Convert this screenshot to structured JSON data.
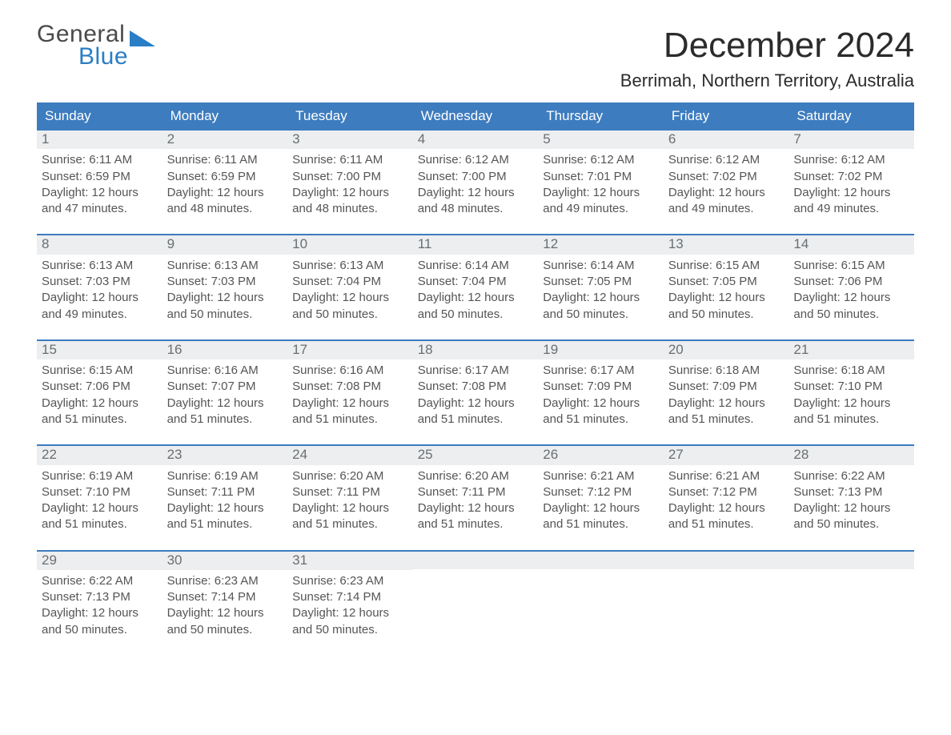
{
  "logo": {
    "line1": "General",
    "line2": "Blue"
  },
  "title": "December 2024",
  "subtitle": "Berrimah, Northern Territory, Australia",
  "colors": {
    "header_bg": "#3d7cbf",
    "header_text": "#ffffff",
    "daybar_bg": "#eceeef",
    "daybar_text": "#6a6f73",
    "rule": "#3d7cbf",
    "logo_dark": "#4a4a4a",
    "logo_blue": "#2a7ec5",
    "page_bg": "#ffffff",
    "text": "#333333"
  },
  "days_of_week": [
    "Sunday",
    "Monday",
    "Tuesday",
    "Wednesday",
    "Thursday",
    "Friday",
    "Saturday"
  ],
  "weeks": [
    [
      {
        "n": "1",
        "sunrise": "Sunrise: 6:11 AM",
        "sunset": "Sunset: 6:59 PM",
        "dl1": "Daylight: 12 hours",
        "dl2": "and 47 minutes."
      },
      {
        "n": "2",
        "sunrise": "Sunrise: 6:11 AM",
        "sunset": "Sunset: 6:59 PM",
        "dl1": "Daylight: 12 hours",
        "dl2": "and 48 minutes."
      },
      {
        "n": "3",
        "sunrise": "Sunrise: 6:11 AM",
        "sunset": "Sunset: 7:00 PM",
        "dl1": "Daylight: 12 hours",
        "dl2": "and 48 minutes."
      },
      {
        "n": "4",
        "sunrise": "Sunrise: 6:12 AM",
        "sunset": "Sunset: 7:00 PM",
        "dl1": "Daylight: 12 hours",
        "dl2": "and 48 minutes."
      },
      {
        "n": "5",
        "sunrise": "Sunrise: 6:12 AM",
        "sunset": "Sunset: 7:01 PM",
        "dl1": "Daylight: 12 hours",
        "dl2": "and 49 minutes."
      },
      {
        "n": "6",
        "sunrise": "Sunrise: 6:12 AM",
        "sunset": "Sunset: 7:02 PM",
        "dl1": "Daylight: 12 hours",
        "dl2": "and 49 minutes."
      },
      {
        "n": "7",
        "sunrise": "Sunrise: 6:12 AM",
        "sunset": "Sunset: 7:02 PM",
        "dl1": "Daylight: 12 hours",
        "dl2": "and 49 minutes."
      }
    ],
    [
      {
        "n": "8",
        "sunrise": "Sunrise: 6:13 AM",
        "sunset": "Sunset: 7:03 PM",
        "dl1": "Daylight: 12 hours",
        "dl2": "and 49 minutes."
      },
      {
        "n": "9",
        "sunrise": "Sunrise: 6:13 AM",
        "sunset": "Sunset: 7:03 PM",
        "dl1": "Daylight: 12 hours",
        "dl2": "and 50 minutes."
      },
      {
        "n": "10",
        "sunrise": "Sunrise: 6:13 AM",
        "sunset": "Sunset: 7:04 PM",
        "dl1": "Daylight: 12 hours",
        "dl2": "and 50 minutes."
      },
      {
        "n": "11",
        "sunrise": "Sunrise: 6:14 AM",
        "sunset": "Sunset: 7:04 PM",
        "dl1": "Daylight: 12 hours",
        "dl2": "and 50 minutes."
      },
      {
        "n": "12",
        "sunrise": "Sunrise: 6:14 AM",
        "sunset": "Sunset: 7:05 PM",
        "dl1": "Daylight: 12 hours",
        "dl2": "and 50 minutes."
      },
      {
        "n": "13",
        "sunrise": "Sunrise: 6:15 AM",
        "sunset": "Sunset: 7:05 PM",
        "dl1": "Daylight: 12 hours",
        "dl2": "and 50 minutes."
      },
      {
        "n": "14",
        "sunrise": "Sunrise: 6:15 AM",
        "sunset": "Sunset: 7:06 PM",
        "dl1": "Daylight: 12 hours",
        "dl2": "and 50 minutes."
      }
    ],
    [
      {
        "n": "15",
        "sunrise": "Sunrise: 6:15 AM",
        "sunset": "Sunset: 7:06 PM",
        "dl1": "Daylight: 12 hours",
        "dl2": "and 51 minutes."
      },
      {
        "n": "16",
        "sunrise": "Sunrise: 6:16 AM",
        "sunset": "Sunset: 7:07 PM",
        "dl1": "Daylight: 12 hours",
        "dl2": "and 51 minutes."
      },
      {
        "n": "17",
        "sunrise": "Sunrise: 6:16 AM",
        "sunset": "Sunset: 7:08 PM",
        "dl1": "Daylight: 12 hours",
        "dl2": "and 51 minutes."
      },
      {
        "n": "18",
        "sunrise": "Sunrise: 6:17 AM",
        "sunset": "Sunset: 7:08 PM",
        "dl1": "Daylight: 12 hours",
        "dl2": "and 51 minutes."
      },
      {
        "n": "19",
        "sunrise": "Sunrise: 6:17 AM",
        "sunset": "Sunset: 7:09 PM",
        "dl1": "Daylight: 12 hours",
        "dl2": "and 51 minutes."
      },
      {
        "n": "20",
        "sunrise": "Sunrise: 6:18 AM",
        "sunset": "Sunset: 7:09 PM",
        "dl1": "Daylight: 12 hours",
        "dl2": "and 51 minutes."
      },
      {
        "n": "21",
        "sunrise": "Sunrise: 6:18 AM",
        "sunset": "Sunset: 7:10 PM",
        "dl1": "Daylight: 12 hours",
        "dl2": "and 51 minutes."
      }
    ],
    [
      {
        "n": "22",
        "sunrise": "Sunrise: 6:19 AM",
        "sunset": "Sunset: 7:10 PM",
        "dl1": "Daylight: 12 hours",
        "dl2": "and 51 minutes."
      },
      {
        "n": "23",
        "sunrise": "Sunrise: 6:19 AM",
        "sunset": "Sunset: 7:11 PM",
        "dl1": "Daylight: 12 hours",
        "dl2": "and 51 minutes."
      },
      {
        "n": "24",
        "sunrise": "Sunrise: 6:20 AM",
        "sunset": "Sunset: 7:11 PM",
        "dl1": "Daylight: 12 hours",
        "dl2": "and 51 minutes."
      },
      {
        "n": "25",
        "sunrise": "Sunrise: 6:20 AM",
        "sunset": "Sunset: 7:11 PM",
        "dl1": "Daylight: 12 hours",
        "dl2": "and 51 minutes."
      },
      {
        "n": "26",
        "sunrise": "Sunrise: 6:21 AM",
        "sunset": "Sunset: 7:12 PM",
        "dl1": "Daylight: 12 hours",
        "dl2": "and 51 minutes."
      },
      {
        "n": "27",
        "sunrise": "Sunrise: 6:21 AM",
        "sunset": "Sunset: 7:12 PM",
        "dl1": "Daylight: 12 hours",
        "dl2": "and 51 minutes."
      },
      {
        "n": "28",
        "sunrise": "Sunrise: 6:22 AM",
        "sunset": "Sunset: 7:13 PM",
        "dl1": "Daylight: 12 hours",
        "dl2": "and 50 minutes."
      }
    ],
    [
      {
        "n": "29",
        "sunrise": "Sunrise: 6:22 AM",
        "sunset": "Sunset: 7:13 PM",
        "dl1": "Daylight: 12 hours",
        "dl2": "and 50 minutes."
      },
      {
        "n": "30",
        "sunrise": "Sunrise: 6:23 AM",
        "sunset": "Sunset: 7:14 PM",
        "dl1": "Daylight: 12 hours",
        "dl2": "and 50 minutes."
      },
      {
        "n": "31",
        "sunrise": "Sunrise: 6:23 AM",
        "sunset": "Sunset: 7:14 PM",
        "dl1": "Daylight: 12 hours",
        "dl2": "and 50 minutes."
      },
      {
        "empty": true
      },
      {
        "empty": true
      },
      {
        "empty": true
      },
      {
        "empty": true
      }
    ]
  ]
}
